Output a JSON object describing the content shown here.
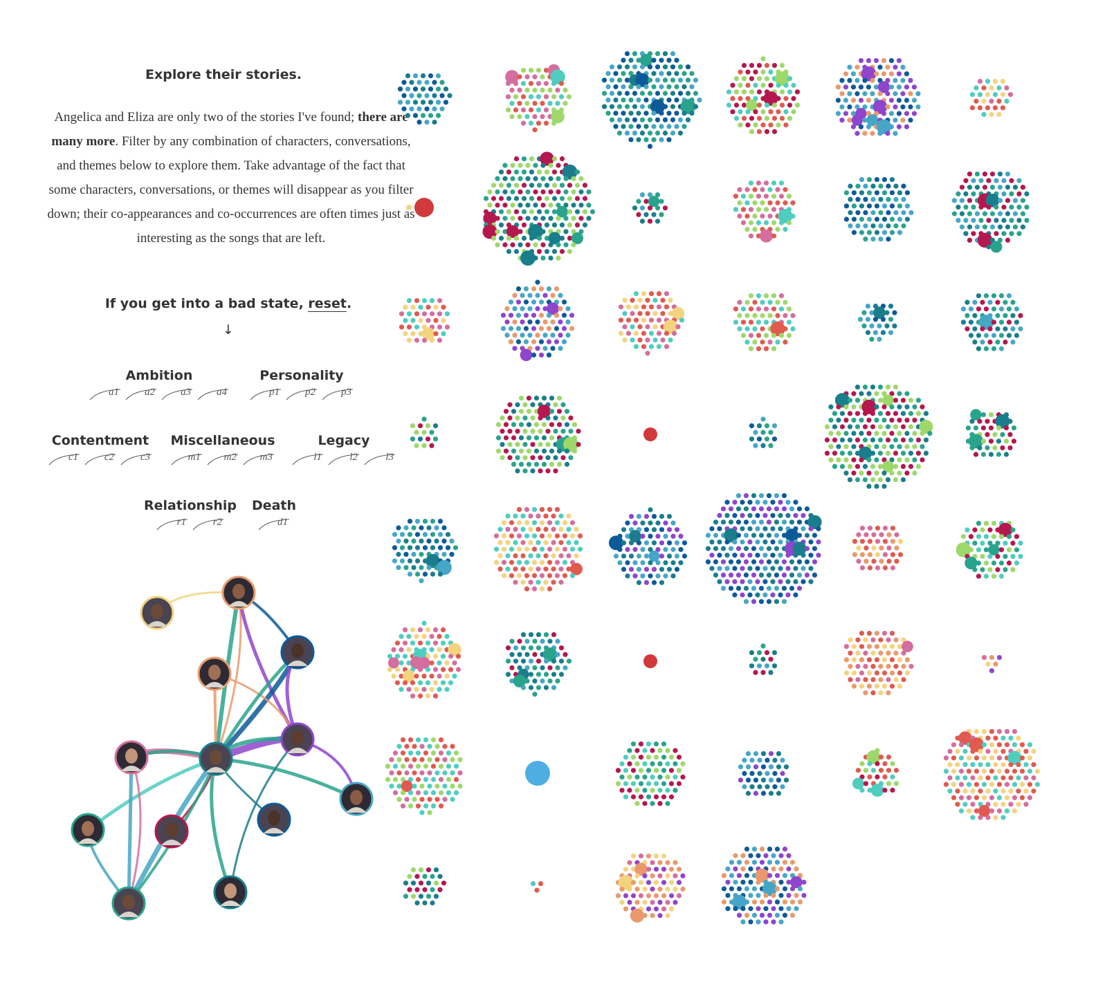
{
  "intro": {
    "title": "Explore their stories.",
    "p1": "Angelica and Eliza are only two of the stories I've found;",
    "p2_bold": "there are many more",
    "p2": ". Filter by any combination of characters, conversations, and themes below to explore them. Take advantage of the fact that some characters, conversations, or themes will disappear as you filter down; their co-appearances and co-occurrences are often times just as interesting as the songs that are left.",
    "reset_pre": "If you get into a bad state, ",
    "reset_link": "reset",
    "reset_post": ".",
    "arrow": "↓"
  },
  "themes": [
    {
      "title": "Ambition",
      "buttons": [
        "a1",
        "a2",
        "a3",
        "a4"
      ]
    },
    {
      "title": "Personality",
      "buttons": [
        "p1",
        "p2",
        "p3"
      ]
    },
    {
      "title": "Contentment",
      "buttons": [
        "c1",
        "c2",
        "c3"
      ]
    },
    {
      "title": "Miscellaneous",
      "buttons": [
        "m1",
        "m2",
        "m3"
      ]
    },
    {
      "title": "Legacy",
      "buttons": [
        "l1",
        "l2",
        "l3"
      ]
    },
    {
      "title": "Relationship",
      "buttons": [
        "r1",
        "r2"
      ]
    },
    {
      "title": "Death",
      "buttons": [
        "d1"
      ]
    }
  ],
  "colors": {
    "text": "#333333",
    "palette": [
      "#2aa38c",
      "#1a7d8c",
      "#47a6c6",
      "#0d5a99",
      "#8f45cc",
      "#e89a6c",
      "#f4d37f",
      "#d46e9e",
      "#e05a4f",
      "#4fcdc0",
      "#9ed86a",
      "#b5174f"
    ],
    "highlight_red": "#d13a3a",
    "highlight_blue": "#4eaee3",
    "dark_red": "#7a0d0d"
  },
  "character_icons": [
    "photo-ensemble-icon",
    "photo-burr-icon",
    "photo-washington-icon",
    "photo-mulligan-icon",
    "photo-jefferson-icon",
    "photo-angelica-icon",
    "photo-hamilton-icon",
    "photo-laurens-icon",
    "photo-peggy-icon",
    "photo-madison-icon",
    "photo-philip-icon",
    "photo-lafayette-icon",
    "photo-eliza-icon"
  ]
}
